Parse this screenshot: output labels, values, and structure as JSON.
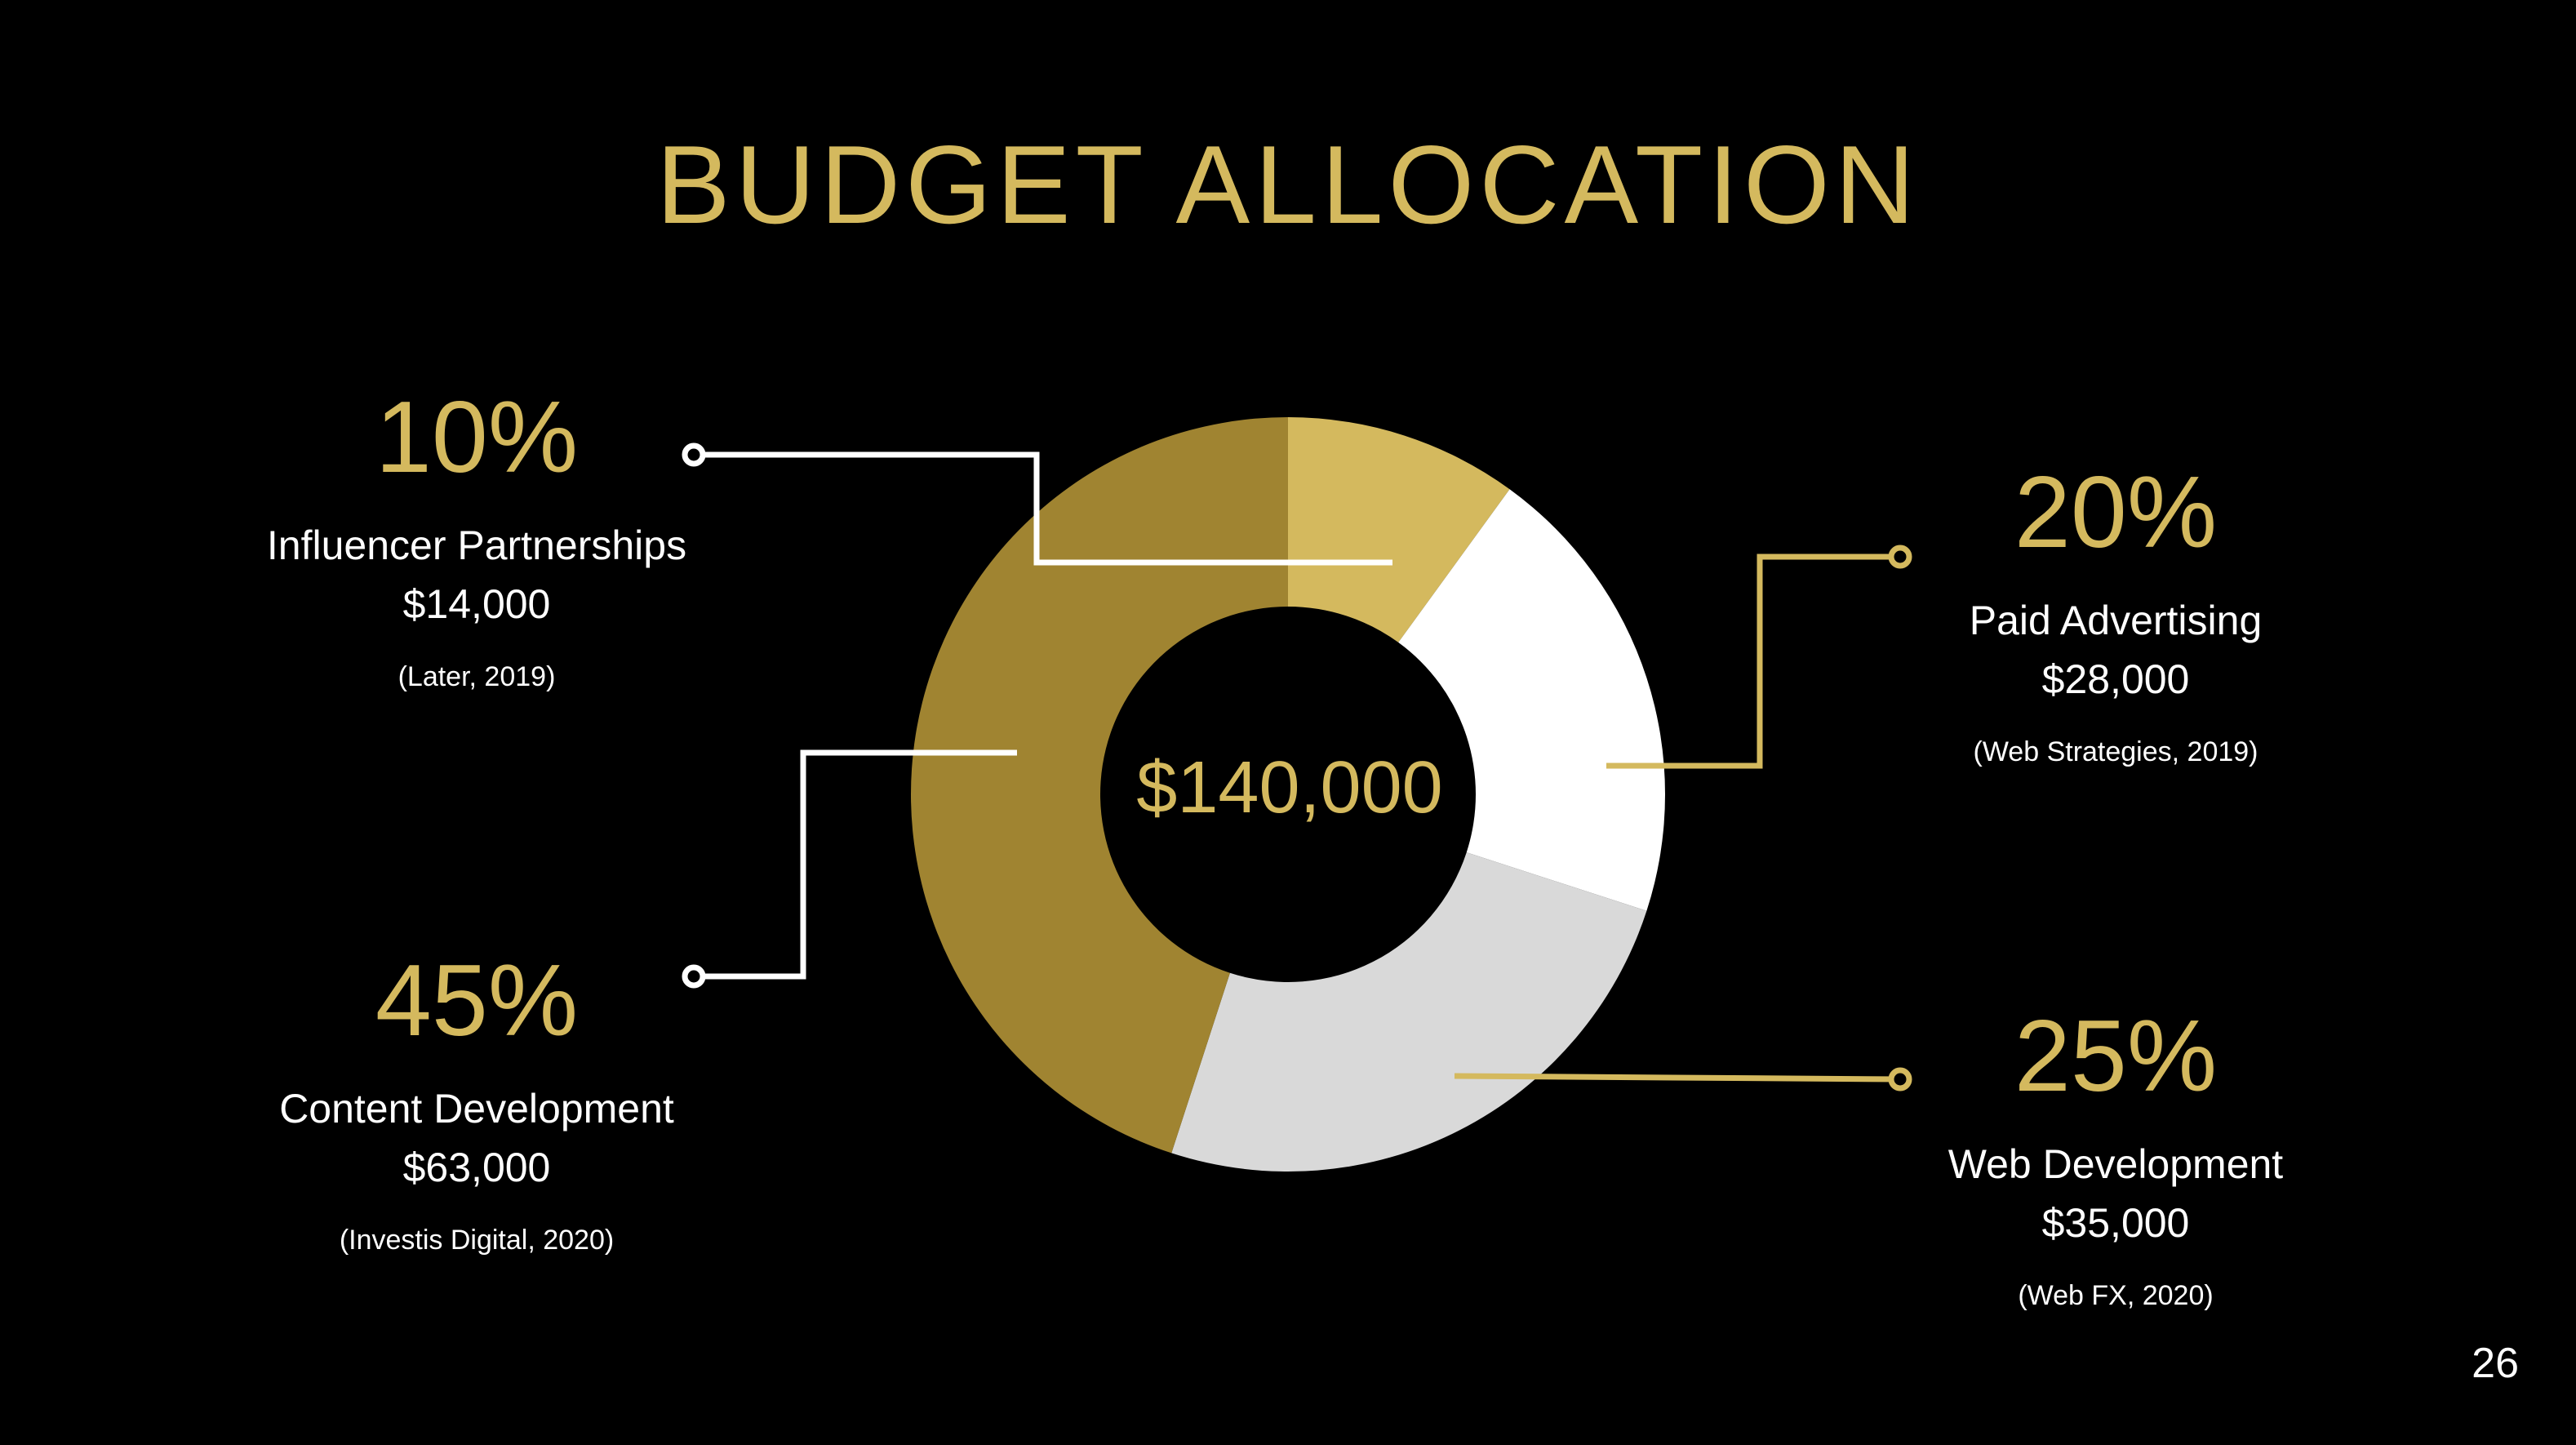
{
  "title": "BUDGET ALLOCATION",
  "page_number": "26",
  "colors": {
    "background": "#000000",
    "accent_gold": "#d4b95e",
    "influencer": "#d4b95e",
    "paid_ads": "#ffffff",
    "web_dev": "#d9d9d9",
    "content_dev": "#a08431"
  },
  "chart_data": {
    "type": "pie",
    "donut": true,
    "title": "BUDGET ALLOCATION",
    "center_label": "$140,000",
    "total": 140000,
    "categories": [
      "Influencer Partnerships",
      "Paid Advertising",
      "Web Development",
      "Content Development"
    ],
    "values": [
      14000,
      28000,
      35000,
      63000
    ],
    "percentages": [
      10,
      20,
      25,
      45
    ],
    "slices": [
      {
        "name": "Influencer Partnerships",
        "percent_label": "10%",
        "value": 14000,
        "value_label": "$14,000",
        "source": "(Later, 2019)",
        "color": "#d4b95e"
      },
      {
        "name": "Paid Advertising",
        "percent_label": "20%",
        "value": 28000,
        "value_label": "$28,000",
        "source": "(Web Strategies, 2019)",
        "color": "#ffffff"
      },
      {
        "name": "Web Development",
        "percent_label": "25%",
        "value": 35000,
        "value_label": "$35,000",
        "source": "(Web FX, 2020)",
        "color": "#d9d9d9"
      },
      {
        "name": "Content Development",
        "percent_label": "45%",
        "value": 63000,
        "value_label": "$63,000",
        "source": "(Investis Digital, 2020)",
        "color": "#a08431"
      }
    ]
  }
}
